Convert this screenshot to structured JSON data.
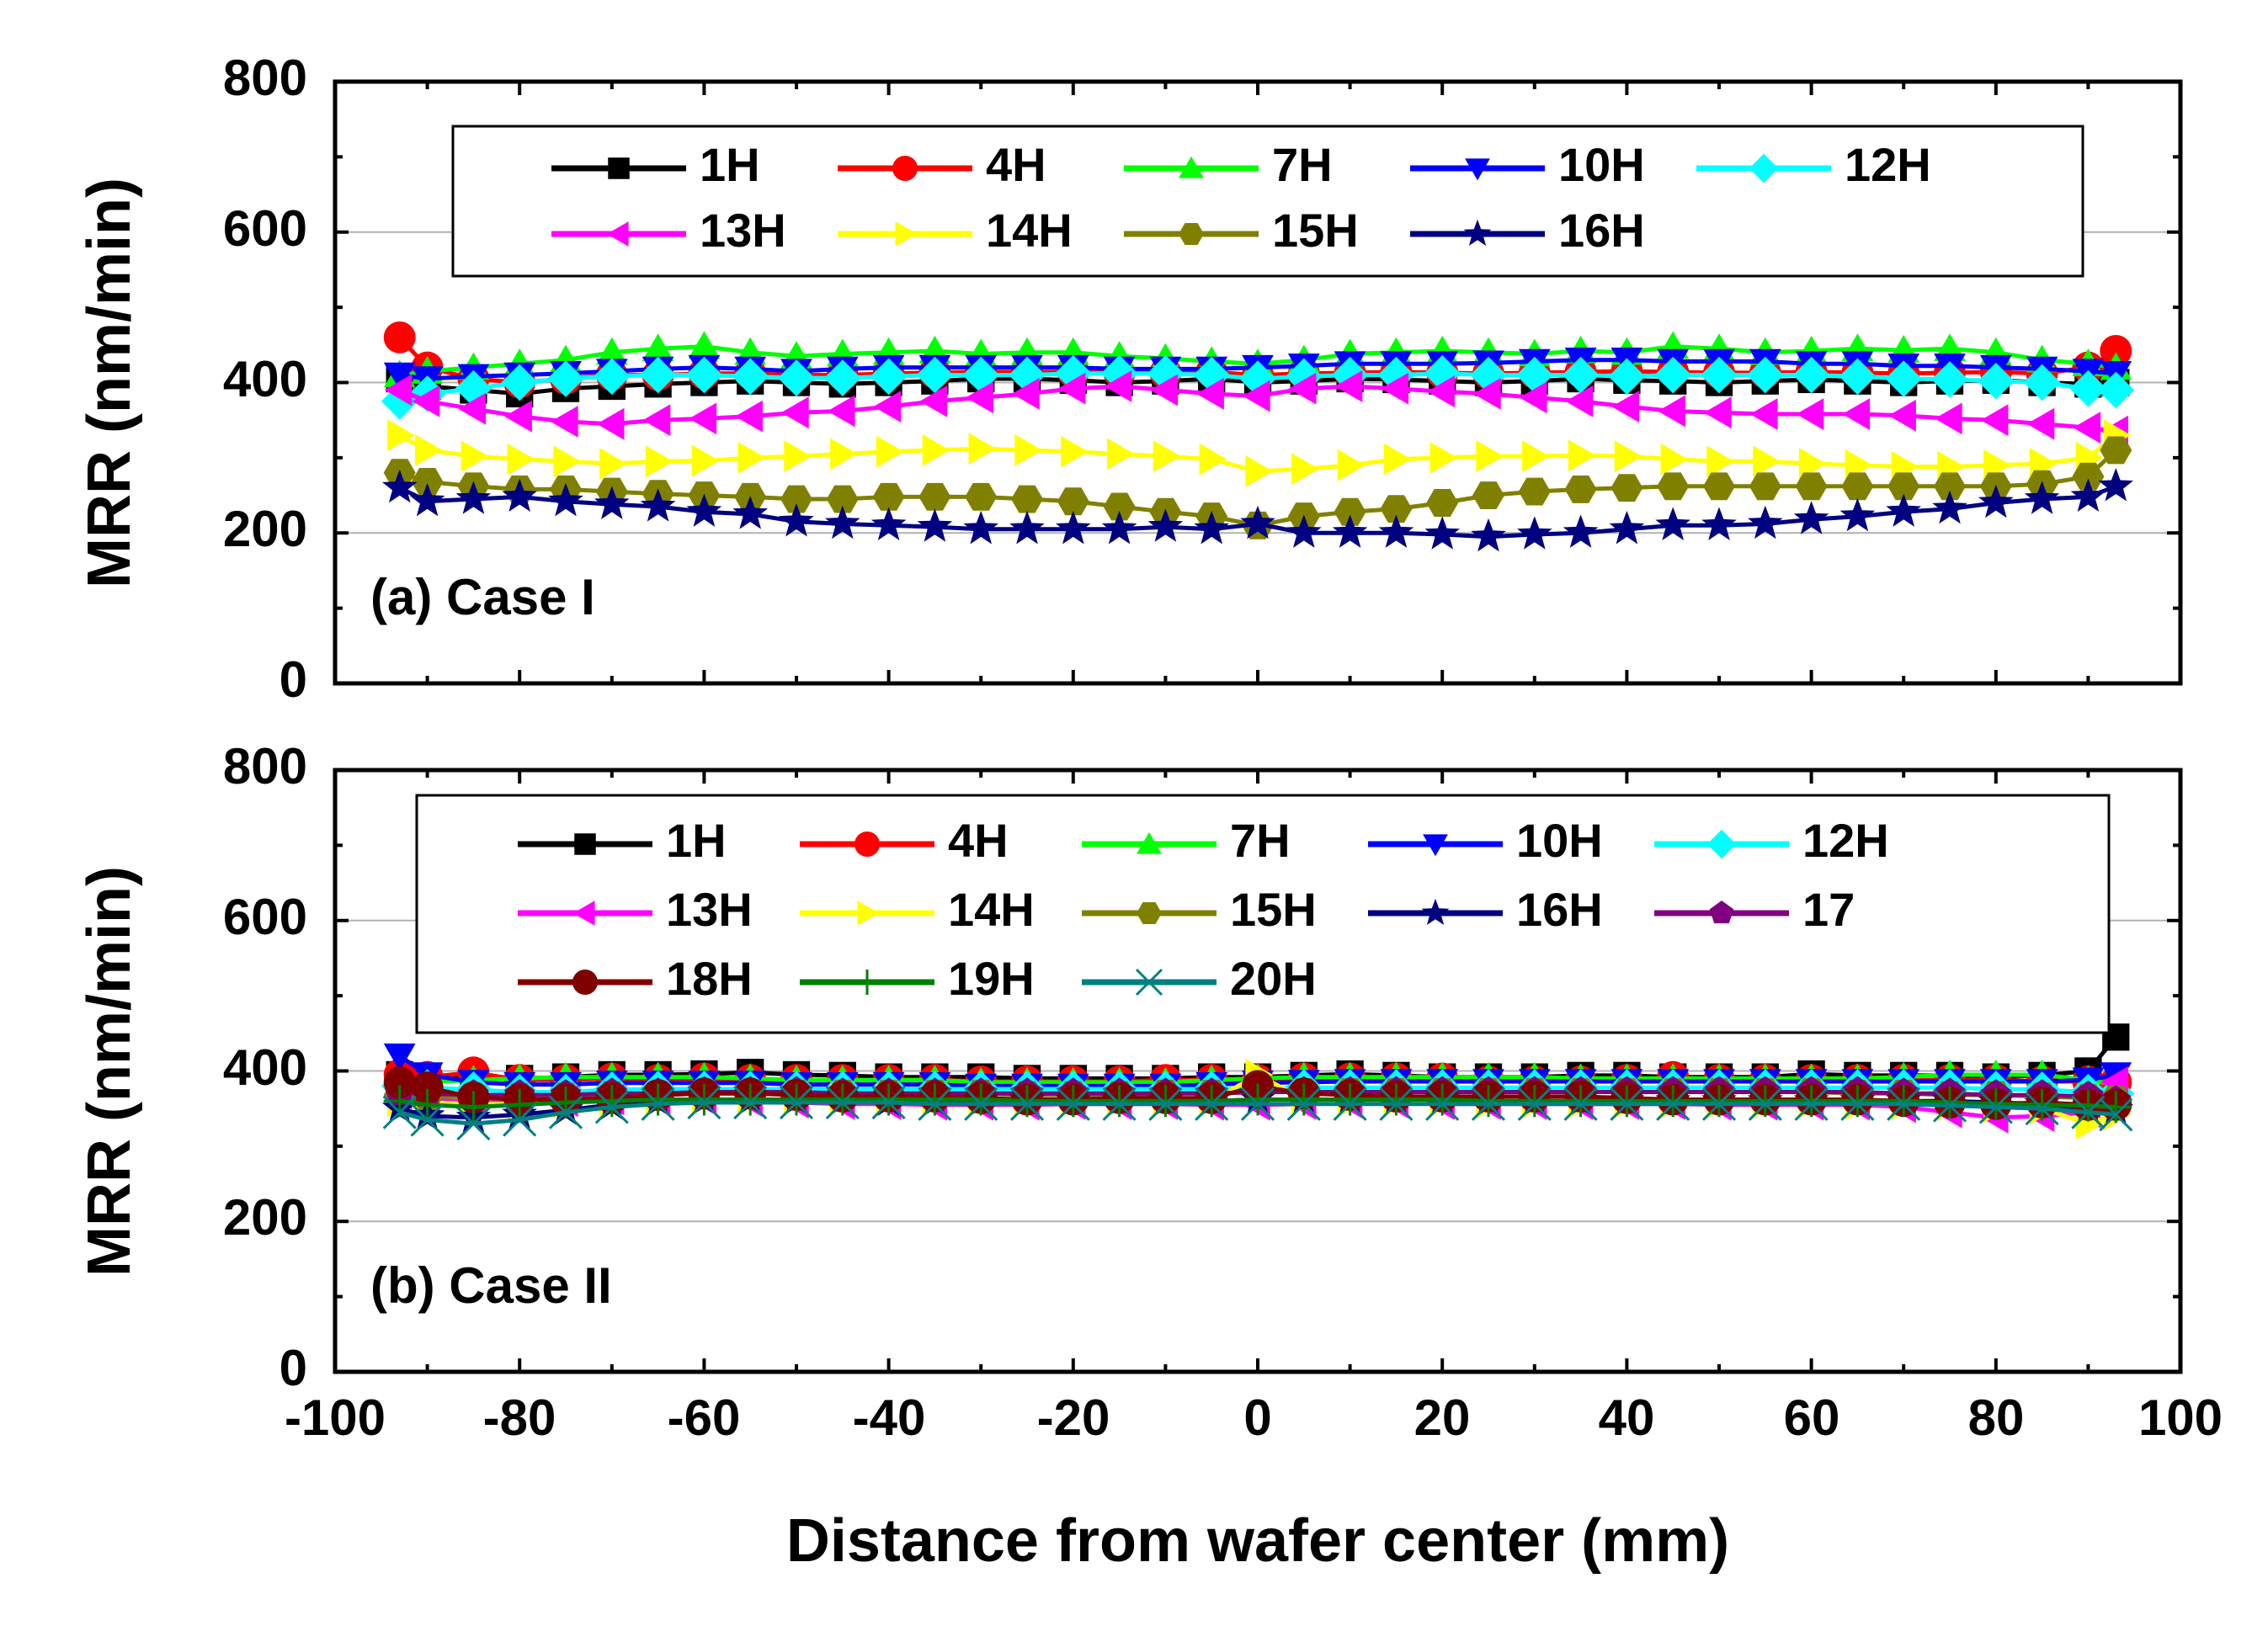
{
  "chart_data": [
    {
      "type": "scatter",
      "panel_label": "(a) Case I",
      "xlabel": "Distance from wafer center (mm)",
      "ylabel": "MRR (nm/min)",
      "xlim": [
        -100,
        100
      ],
      "ylim": [
        0,
        800
      ],
      "x_ticks": [
        -100,
        -80,
        -60,
        -40,
        -20,
        0,
        20,
        40,
        60,
        80,
        100
      ],
      "y_ticks": [
        0,
        200,
        400,
        600,
        800
      ],
      "x": [
        -93,
        -90,
        -85,
        -80,
        -75,
        -70,
        -65,
        -60,
        -55,
        -50,
        -45,
        -40,
        -35,
        -30,
        -25,
        -20,
        -15,
        -10,
        -5,
        0,
        5,
        10,
        15,
        20,
        25,
        30,
        35,
        40,
        45,
        50,
        55,
        60,
        65,
        70,
        75,
        80,
        85,
        90,
        93
      ],
      "series": [
        {
          "name": "1H",
          "marker": "square",
          "color": "#000000",
          "values": [
            405,
            395,
            390,
            385,
            392,
            395,
            398,
            400,
            402,
            400,
            398,
            400,
            402,
            405,
            405,
            403,
            400,
            402,
            405,
            400,
            402,
            405,
            404,
            402,
            400,
            402,
            405,
            403,
            402,
            400,
            402,
            404,
            402,
            400,
            402,
            403,
            400,
            398,
            400
          ]
        },
        {
          "name": "4H",
          "marker": "circle",
          "color": "#ff0000",
          "values": [
            460,
            420,
            405,
            400,
            405,
            410,
            410,
            412,
            412,
            410,
            410,
            412,
            413,
            414,
            414,
            414,
            413,
            413,
            414,
            410,
            412,
            413,
            414,
            413,
            412,
            413,
            414,
            415,
            414,
            413,
            413,
            414,
            413,
            412,
            413,
            414,
            412,
            420,
            442
          ]
        },
        {
          "name": "7H",
          "marker": "triangle-up",
          "color": "#00ff00",
          "values": [
            410,
            415,
            420,
            425,
            430,
            440,
            445,
            448,
            440,
            435,
            438,
            440,
            442,
            438,
            440,
            440,
            435,
            432,
            428,
            425,
            430,
            438,
            440,
            442,
            440,
            438,
            442,
            440,
            448,
            445,
            440,
            442,
            445,
            443,
            445,
            440,
            430,
            425,
            420
          ]
        },
        {
          "name": "10H",
          "marker": "triangle-down",
          "color": "#0000ff",
          "values": [
            410,
            405,
            408,
            410,
            412,
            415,
            418,
            420,
            418,
            415,
            418,
            420,
            420,
            420,
            420,
            420,
            418,
            418,
            418,
            420,
            422,
            425,
            425,
            425,
            426,
            428,
            430,
            430,
            428,
            428,
            428,
            425,
            425,
            422,
            422,
            420,
            418,
            415,
            412
          ]
        },
        {
          "name": "12H",
          "marker": "diamond",
          "color": "#00ffff",
          "values": [
            375,
            385,
            392,
            400,
            405,
            408,
            410,
            410,
            408,
            406,
            406,
            408,
            410,
            410,
            410,
            412,
            412,
            412,
            410,
            405,
            408,
            410,
            410,
            412,
            410,
            410,
            410,
            408,
            410,
            410,
            410,
            410,
            408,
            405,
            404,
            402,
            400,
            392,
            390
          ]
        },
        {
          "name": "13H",
          "marker": "triangle-left",
          "color": "#ff00ff",
          "values": [
            390,
            375,
            365,
            355,
            348,
            345,
            350,
            352,
            355,
            360,
            362,
            368,
            375,
            380,
            385,
            392,
            395,
            390,
            385,
            382,
            392,
            395,
            392,
            388,
            385,
            380,
            375,
            368,
            362,
            360,
            358,
            358,
            358,
            356,
            352,
            350,
            345,
            340,
            335
          ]
        },
        {
          "name": "14H",
          "marker": "triangle-right",
          "color": "#ffff00",
          "values": [
            330,
            310,
            302,
            298,
            295,
            292,
            295,
            296,
            300,
            302,
            305,
            308,
            310,
            312,
            310,
            308,
            305,
            302,
            298,
            282,
            285,
            290,
            298,
            300,
            302,
            302,
            303,
            302,
            298,
            295,
            295,
            292,
            290,
            288,
            288,
            290,
            292,
            300,
            330
          ]
        },
        {
          "name": "15H",
          "marker": "hexagon",
          "color": "#808000",
          "values": [
            280,
            268,
            262,
            258,
            258,
            255,
            252,
            250,
            248,
            245,
            245,
            248,
            248,
            248,
            245,
            242,
            235,
            228,
            222,
            210,
            222,
            228,
            232,
            240,
            250,
            255,
            258,
            260,
            262,
            262,
            262,
            262,
            262,
            262,
            262,
            262,
            265,
            275,
            310
          ]
        },
        {
          "name": "16H",
          "marker": "star",
          "color": "#000080",
          "values": [
            260,
            242,
            245,
            248,
            242,
            238,
            235,
            228,
            225,
            215,
            212,
            210,
            208,
            205,
            205,
            205,
            205,
            208,
            205,
            212,
            200,
            200,
            200,
            198,
            195,
            198,
            200,
            205,
            210,
            210,
            212,
            218,
            222,
            228,
            232,
            240,
            245,
            248,
            262
          ]
        }
      ]
    },
    {
      "type": "scatter",
      "panel_label": "(b) Case II",
      "xlabel": "Distance from wafer center (mm)",
      "ylabel": "MRR (nm/min)",
      "xlim": [
        -100,
        100
      ],
      "ylim": [
        0,
        800
      ],
      "x_ticks": [
        -100,
        -80,
        -60,
        -40,
        -20,
        0,
        20,
        40,
        60,
        80,
        100
      ],
      "y_ticks": [
        0,
        200,
        400,
        600,
        800
      ],
      "x": [
        -93,
        -90,
        -85,
        -80,
        -75,
        -70,
        -65,
        -60,
        -55,
        -50,
        -45,
        -40,
        -35,
        -30,
        -25,
        -20,
        -15,
        -10,
        -5,
        0,
        5,
        10,
        15,
        20,
        25,
        30,
        35,
        40,
        45,
        50,
        55,
        60,
        65,
        70,
        75,
        80,
        85,
        90,
        93
      ],
      "series": [
        {
          "name": "1H",
          "marker": "square",
          "color": "#000000",
          "values": [
            395,
            392,
            390,
            390,
            392,
            395,
            395,
            396,
            398,
            395,
            394,
            392,
            392,
            392,
            390,
            390,
            390,
            390,
            392,
            392,
            394,
            396,
            394,
            392,
            392,
            392,
            394,
            394,
            392,
            392,
            392,
            396,
            394,
            394,
            394,
            392,
            394,
            400,
            445
          ]
        },
        {
          "name": "4H",
          "marker": "circle",
          "color": "#ff0000",
          "values": [
            395,
            392,
            398,
            388,
            388,
            390,
            388,
            390,
            388,
            388,
            388,
            388,
            388,
            386,
            386,
            386,
            386,
            388,
            388,
            388,
            390,
            390,
            390,
            390,
            386,
            386,
            386,
            388,
            392,
            388,
            388,
            388,
            388,
            388,
            388,
            388,
            386,
            386,
            385
          ]
        },
        {
          "name": "7H",
          "marker": "triangle-up",
          "color": "#00ff00",
          "values": [
            380,
            385,
            388,
            390,
            392,
            392,
            392,
            392,
            390,
            388,
            388,
            388,
            388,
            385,
            385,
            385,
            385,
            385,
            388,
            390,
            392,
            392,
            392,
            392,
            392,
            392,
            390,
            390,
            390,
            390,
            390,
            390,
            390,
            392,
            395,
            395,
            395,
            388,
            382
          ]
        },
        {
          "name": "10H",
          "marker": "triangle-down",
          "color": "#0000ff",
          "values": [
            420,
            395,
            385,
            382,
            382,
            384,
            384,
            384,
            384,
            382,
            382,
            382,
            382,
            380,
            380,
            380,
            380,
            380,
            382,
            384,
            385,
            386,
            386,
            386,
            386,
            386,
            386,
            386,
            386,
            386,
            386,
            386,
            386,
            386,
            386,
            386,
            386,
            388,
            395
          ]
        },
        {
          "name": "12H",
          "marker": "diamond",
          "color": "#00ffff",
          "values": [
            380,
            378,
            375,
            372,
            372,
            375,
            376,
            376,
            376,
            376,
            376,
            376,
            376,
            376,
            376,
            376,
            376,
            376,
            376,
            376,
            378,
            378,
            378,
            378,
            378,
            378,
            378,
            378,
            378,
            378,
            378,
            378,
            378,
            378,
            378,
            376,
            375,
            372,
            370
          ]
        },
        {
          "name": "13H",
          "marker": "triangle-left",
          "color": "#ff00ff",
          "values": [
            370,
            362,
            358,
            358,
            360,
            362,
            362,
            362,
            360,
            358,
            356,
            356,
            355,
            355,
            355,
            356,
            356,
            356,
            355,
            355,
            356,
            358,
            358,
            356,
            356,
            356,
            356,
            356,
            356,
            355,
            355,
            355,
            355,
            352,
            345,
            338,
            340,
            345,
            385
          ]
        },
        {
          "name": "14H",
          "marker": "triangle-right",
          "color": "#ffff00",
          "values": [
            360,
            358,
            356,
            356,
            358,
            360,
            362,
            362,
            362,
            362,
            362,
            362,
            360,
            360,
            360,
            360,
            360,
            360,
            360,
            395,
            362,
            360,
            360,
            360,
            358,
            358,
            358,
            358,
            358,
            358,
            358,
            358,
            356,
            356,
            355,
            352,
            350,
            330,
            342
          ]
        },
        {
          "name": "15H",
          "marker": "hexagon",
          "color": "#808000",
          "values": [
            368,
            366,
            365,
            365,
            366,
            368,
            368,
            370,
            370,
            370,
            370,
            370,
            370,
            370,
            368,
            368,
            368,
            370,
            370,
            372,
            372,
            372,
            372,
            372,
            372,
            372,
            372,
            372,
            372,
            372,
            372,
            372,
            370,
            370,
            368,
            368,
            366,
            364,
            362
          ]
        },
        {
          "name": "16H",
          "marker": "star",
          "color": "#000080",
          "values": [
            350,
            340,
            338,
            342,
            348,
            355,
            360,
            362,
            362,
            362,
            362,
            360,
            360,
            360,
            360,
            360,
            360,
            360,
            360,
            362,
            362,
            362,
            362,
            362,
            360,
            360,
            360,
            360,
            360,
            360,
            360,
            360,
            360,
            360,
            360,
            358,
            356,
            350,
            348
          ]
        },
        {
          "name": "17",
          "marker": "pentagon",
          "color": "#800080",
          "values": [
            372,
            370,
            368,
            368,
            368,
            370,
            370,
            372,
            372,
            372,
            370,
            370,
            370,
            370,
            370,
            370,
            370,
            370,
            370,
            372,
            372,
            372,
            372,
            372,
            372,
            372,
            372,
            372,
            372,
            372,
            372,
            372,
            372,
            370,
            370,
            368,
            368,
            366,
            360
          ]
        },
        {
          "name": "18H",
          "marker": "circle",
          "color": "#800000",
          "values": [
            385,
            378,
            365,
            362,
            362,
            364,
            368,
            370,
            370,
            368,
            366,
            366,
            366,
            364,
            362,
            362,
            364,
            364,
            364,
            380,
            370,
            368,
            366,
            366,
            366,
            366,
            366,
            364,
            362,
            362,
            362,
            362,
            362,
            360,
            358,
            356,
            358,
            355,
            355
          ]
        },
        {
          "name": "19H",
          "marker": "plus",
          "color": "#008000",
          "values": [
            360,
            355,
            352,
            355,
            358,
            360,
            362,
            362,
            362,
            362,
            362,
            362,
            362,
            362,
            360,
            360,
            360,
            360,
            360,
            362,
            362,
            362,
            362,
            362,
            360,
            360,
            360,
            360,
            360,
            360,
            360,
            360,
            360,
            360,
            358,
            356,
            355,
            354,
            352
          ]
        },
        {
          "name": "20H",
          "marker": "x",
          "color": "#008080",
          "values": [
            345,
            335,
            330,
            335,
            345,
            352,
            356,
            358,
            358,
            358,
            358,
            358,
            356,
            356,
            356,
            356,
            356,
            356,
            356,
            356,
            356,
            356,
            356,
            356,
            356,
            356,
            356,
            356,
            356,
            356,
            356,
            356,
            356,
            356,
            354,
            352,
            350,
            345,
            342
          ]
        }
      ]
    }
  ]
}
